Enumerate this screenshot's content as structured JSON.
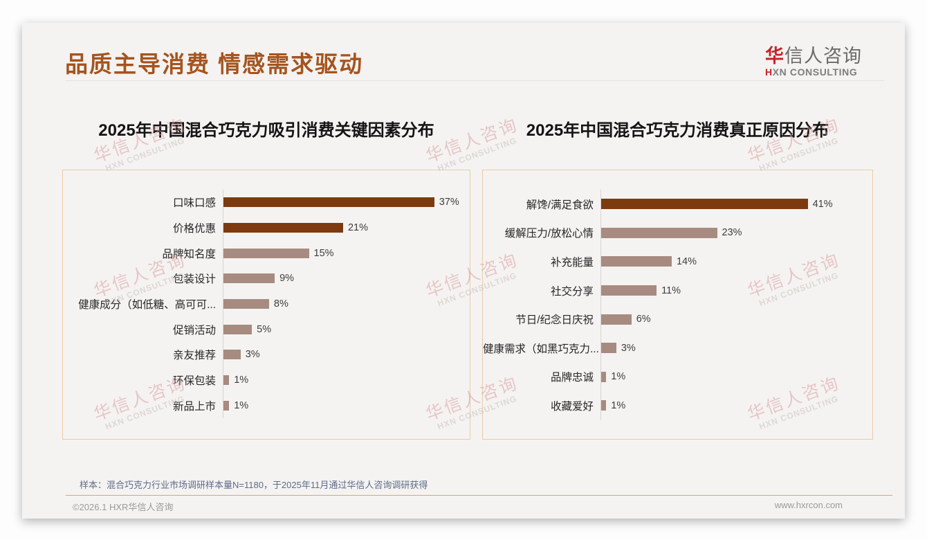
{
  "header": {
    "title": "品质主导消费 情感需求驱动",
    "logo": {
      "zh_accent": "华",
      "zh_rest": "信人咨询",
      "en_accent": "H",
      "en_rest": "XN CONSULTING"
    }
  },
  "watermark": {
    "zh": "华信人咨询",
    "en": "HXN CONSULTING"
  },
  "footer": {
    "footnote": "样本：混合巧克力行业市场调研样本量N=1180，于2025年11月通过华信人咨询调研获得",
    "copyright": "©2026.1 HXR华信人咨询",
    "website": "www.hxrcon.com"
  },
  "colors": {
    "title_brown": "#A4541F",
    "bar_dark": "#7D3A0F",
    "bar_light": "#A78B80",
    "panel_border": "#EACBA8",
    "logo_red": "#C8232B"
  },
  "chart_data": [
    {
      "type": "bar",
      "orientation": "horizontal",
      "title": "2025年中国混合巧克力吸引消费关键因素分布",
      "categories": [
        "口味口感",
        "价格优惠",
        "品牌知名度",
        "包装设计",
        "健康成分（如低糖、高可可...",
        "促销活动",
        "亲友推荐",
        "环保包装",
        "新品上市"
      ],
      "values": [
        37,
        21,
        15,
        9,
        8,
        5,
        3,
        1,
        1
      ],
      "unit": "%",
      "xlim": [
        0,
        42.5
      ],
      "grid": false,
      "legend": false,
      "value_labels": true,
      "highlight_count": 2,
      "highlight_color": "#7D3A0F",
      "bar_color": "#A78B80"
    },
    {
      "type": "bar",
      "orientation": "horizontal",
      "title": "2025年中国混合巧克力消费真正原因分布",
      "categories": [
        "解馋/满足食欲",
        "缓解压力/放松心情",
        "补充能量",
        "社交分享",
        "节日/纪念日庆祝",
        "健康需求（如黑巧克力...",
        "品牌忠诚",
        "收藏爱好"
      ],
      "values": [
        41,
        23,
        14,
        11,
        6,
        3,
        1,
        1
      ],
      "unit": "%",
      "xlim": [
        0,
        53
      ],
      "grid": false,
      "legend": false,
      "value_labels": true,
      "highlight_count": 1,
      "highlight_color": "#7D3A0F",
      "bar_color": "#A78B80"
    }
  ]
}
